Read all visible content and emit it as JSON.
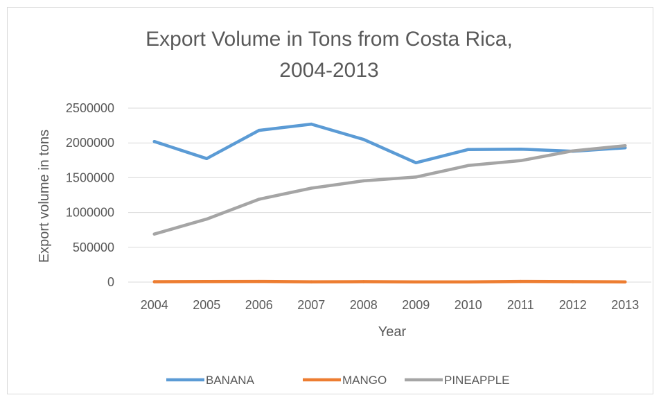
{
  "chart_data": {
    "type": "line",
    "title": "Export Volume in Tons from Costa Rica,",
    "subtitle": "2004-2013",
    "xlabel": "Year",
    "ylabel": "Export volume in tons",
    "categories": [
      "2004",
      "2005",
      "2006",
      "2007",
      "2008",
      "2009",
      "2010",
      "2011",
      "2012",
      "2013"
    ],
    "y_ticks": [
      "0",
      "500000",
      "1000000",
      "1500000",
      "2000000",
      "2500000"
    ],
    "ylim": [
      0,
      2500000
    ],
    "grid": true,
    "legend_position": "bottom",
    "series": [
      {
        "name": "BANANA",
        "color": "#5B9BD5",
        "values": [
          2020000,
          1775000,
          2180000,
          2270000,
          2050000,
          1715000,
          1905000,
          1910000,
          1880000,
          1930000
        ]
      },
      {
        "name": "MANGO",
        "color": "#ED7D31",
        "values": [
          5000,
          7000,
          9000,
          4000,
          6000,
          3000,
          3000,
          9000,
          6000,
          3000
        ]
      },
      {
        "name": "PINEAPPLE",
        "color": "#A5A5A5",
        "values": [
          690000,
          905000,
          1190000,
          1350000,
          1455000,
          1510000,
          1675000,
          1745000,
          1885000,
          1960000
        ]
      }
    ]
  }
}
